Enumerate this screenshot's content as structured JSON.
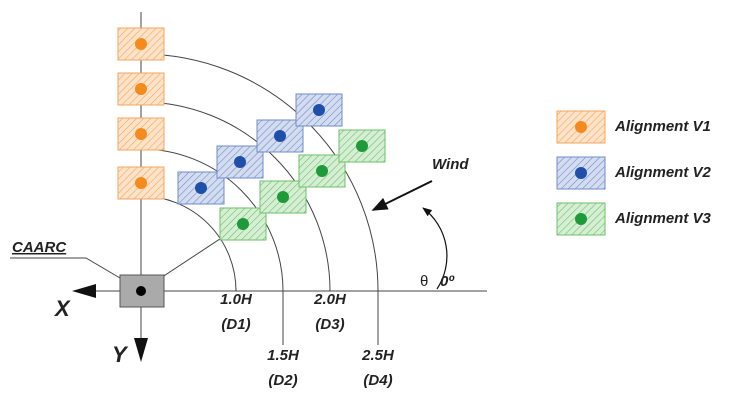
{
  "labels": {
    "caarc": "CAARC",
    "x_axis": "X",
    "y_axis": "Y",
    "wind": "Wind",
    "theta": "θ",
    "angle": "0º"
  },
  "distances": [
    {
      "height": "1.0H",
      "name": "(D1)"
    },
    {
      "height": "1.5H",
      "name": "(D2)"
    },
    {
      "height": "2.0H",
      "name": "(D3)"
    },
    {
      "height": "2.5H",
      "name": "(D4)"
    }
  ],
  "legend": [
    "Alignment V1",
    "Alignment V2",
    "Alignment V3"
  ]
}
